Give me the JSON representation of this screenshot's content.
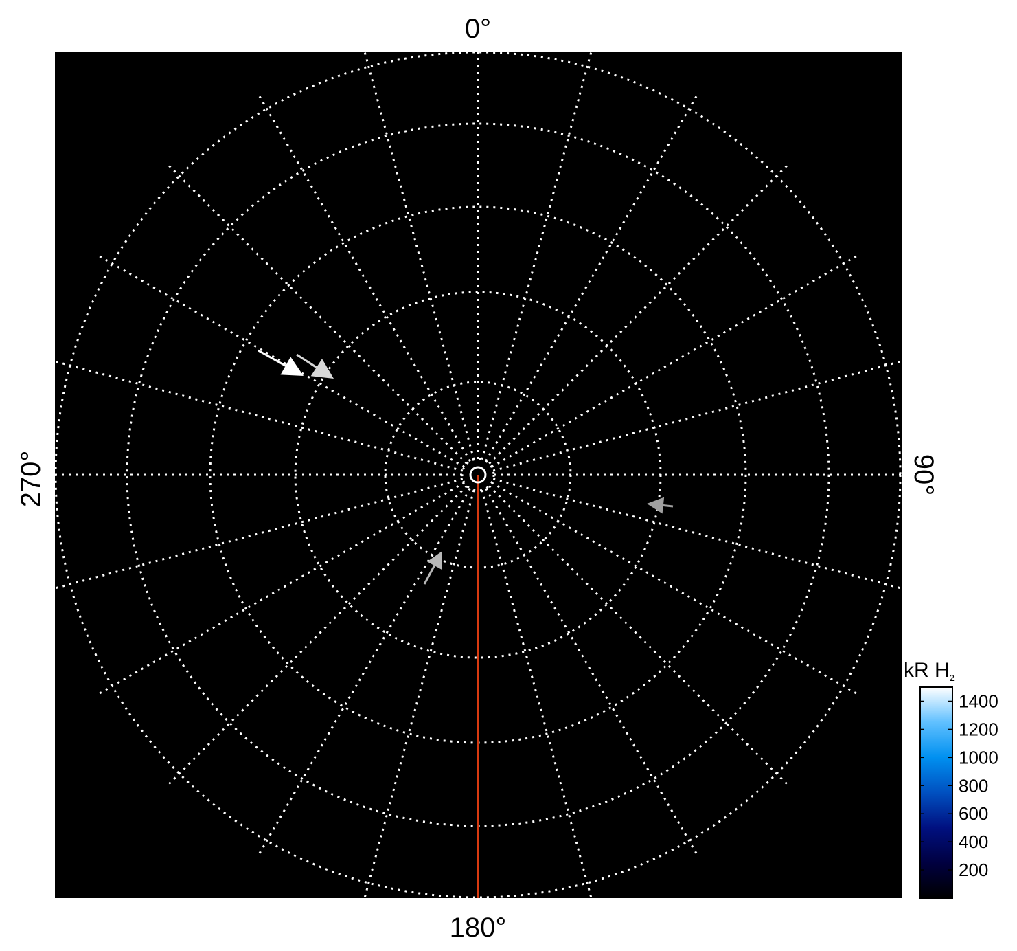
{
  "chart_data": {
    "type": "polar",
    "angular_labels": {
      "top": "0°",
      "right": "90°",
      "bottom": "180°",
      "left": "270°"
    },
    "angular_grid_step_deg": 15,
    "radial_rings": 5,
    "grid": true,
    "grid_style": "dotted white",
    "background": "#000000",
    "highlight_line": {
      "angle_deg": 180,
      "color": "#d83a10"
    },
    "arrows": [
      {
        "color": "#ffffff"
      },
      {
        "color": "#d8d8d8"
      },
      {
        "color": "#a0a0a0"
      },
      {
        "color": "#b8b8b8"
      }
    ],
    "colorbar": {
      "title": "kR H",
      "title_subscript": "2",
      "range": [
        0,
        1500
      ],
      "ticks": [
        "200",
        "400",
        "600",
        "800",
        "1000",
        "1200",
        "1400"
      ],
      "colormap": [
        "#000000",
        "#000040",
        "#001080",
        "#0050c0",
        "#0090f0",
        "#60c0ff",
        "#ffffff"
      ],
      "placement": "bottom-right"
    }
  }
}
